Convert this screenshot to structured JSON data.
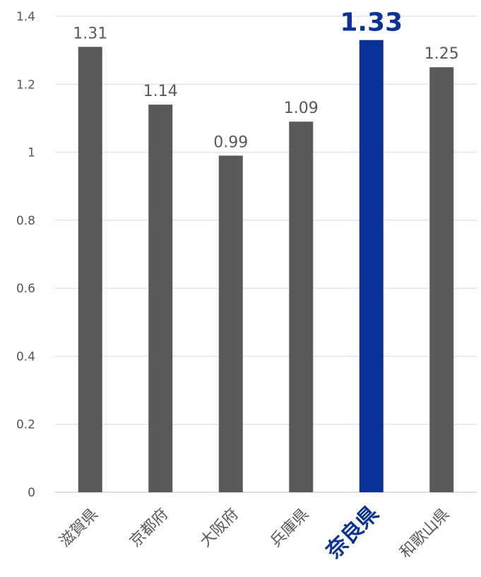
{
  "chart_data": {
    "type": "bar",
    "categories": [
      "滋賀県",
      "京都府",
      "大阪府",
      "兵庫県",
      "奈良県",
      "和歌山県"
    ],
    "values": [
      1.31,
      1.14,
      0.99,
      1.09,
      1.33,
      1.25
    ],
    "value_labels": [
      "1.31",
      "1.14",
      "0.99",
      "1.09",
      "1.33",
      "1.25"
    ],
    "yticks": [
      0,
      0.2,
      0.4,
      0.6,
      0.8,
      1,
      1.2,
      1.4
    ],
    "ytick_labels": [
      "0",
      "0.2",
      "0.4",
      "0.6",
      "0.8",
      "1",
      "1.2",
      "1.4"
    ],
    "ylim": [
      0,
      1.4
    ],
    "grid": true,
    "highlight_index": 4,
    "colors": {
      "bar": "#595959",
      "highlight": "#0a3296",
      "grid": "#d9d9d9"
    }
  }
}
